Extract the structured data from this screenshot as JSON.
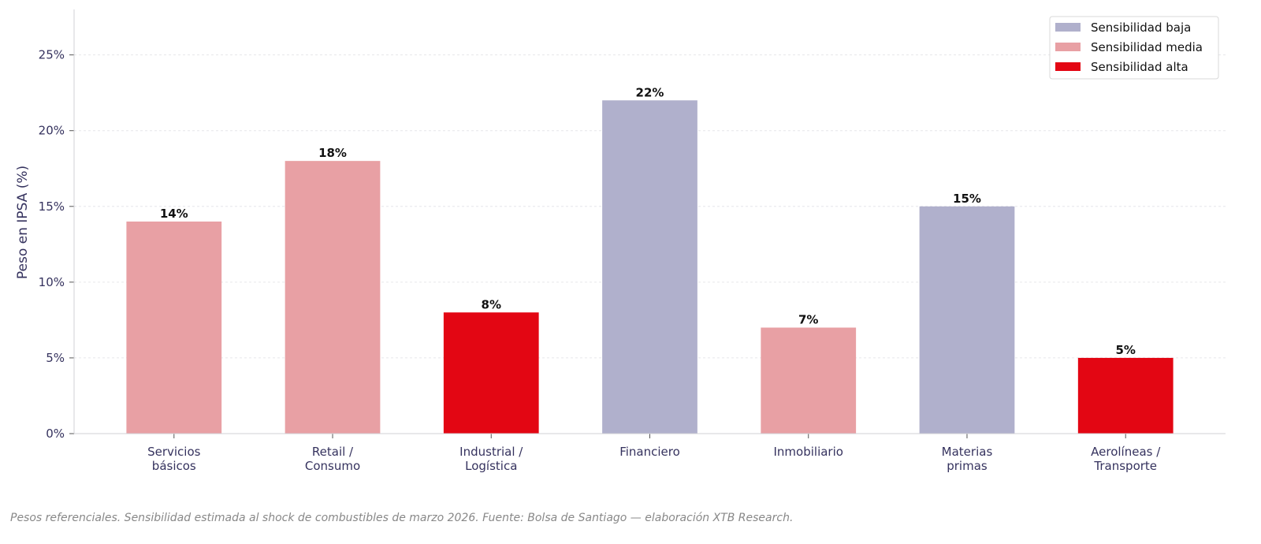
{
  "chart_data": {
    "type": "bar",
    "categories": [
      [
        "Servicios",
        "básicos"
      ],
      [
        "Retail /",
        "Consumo"
      ],
      [
        "Industrial /",
        "Logística"
      ],
      [
        "Financiero"
      ],
      [
        "Inmobiliario"
      ],
      [
        "Materias",
        "primas"
      ],
      [
        "Aerolíneas /",
        "Transporte"
      ]
    ],
    "values": [
      14,
      18,
      8,
      22,
      7,
      15,
      5
    ],
    "value_labels": [
      "14%",
      "18%",
      "8%",
      "22%",
      "7%",
      "15%",
      "5%"
    ],
    "sensitivity": [
      "media",
      "media",
      "alta",
      "baja",
      "media",
      "baja",
      "alta"
    ],
    "ylabel": "Peso en IPSA (%)",
    "xlabel": "",
    "ylim": [
      0,
      28
    ],
    "yticks": [
      0,
      5,
      10,
      15,
      20,
      25
    ],
    "ytick_labels": [
      "0%",
      "5%",
      "10%",
      "15%",
      "20%",
      "25%"
    ],
    "grid": "horizontal dashed",
    "legend": {
      "placement": "top-right",
      "entries": [
        {
          "key": "baja",
          "label": "Sensibilidad baja",
          "color": "#b0b0cc"
        },
        {
          "key": "media",
          "label": "Sensibilidad media",
          "color": "#e8a0a4"
        },
        {
          "key": "alta",
          "label": "Sensibilidad alta",
          "color": "#e30613"
        }
      ]
    }
  },
  "footnote": "Pesos referenciales. Sensibilidad estimada al shock de combustibles de marzo 2026. Fuente: Bolsa de Santiago — elaboración XTB Research."
}
